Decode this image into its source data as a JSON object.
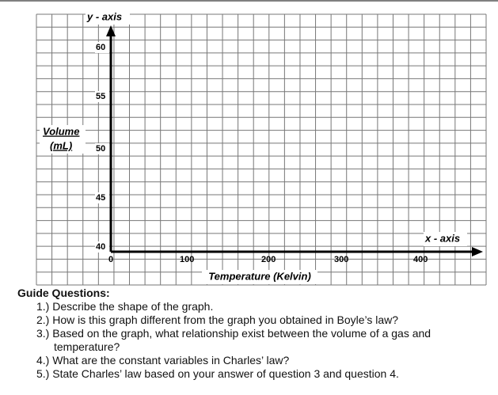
{
  "graph": {
    "y_axis_name": "y - axis",
    "x_axis_name": "x - axis",
    "y_label": [
      "Volume",
      "(mL)"
    ],
    "x_label": "Temperature (Kelvin)",
    "y_tick_labels": [
      60,
      55,
      50,
      45,
      40
    ],
    "x_tick_labels": [
      0,
      100,
      200,
      300,
      400
    ]
  },
  "guide": {
    "title": "Guide Questions:",
    "questions": [
      "1.) Describe the shape of the graph.",
      "2.) How is this graph different from the graph you obtained in Boyle’s law?",
      "3.) Based on the graph, what relationship exist between the volume of a gas and temperature?",
      "4.) What are the constant variables in Charles’ law?",
      "5.) State Charles’ law based on your answer of question 3 and question 4."
    ]
  }
}
